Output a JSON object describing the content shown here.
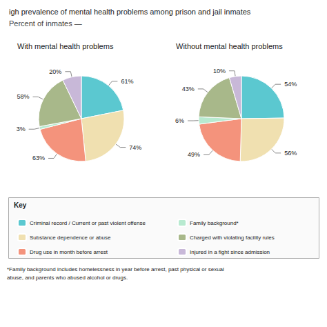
{
  "chart_data": {
    "type": "pie",
    "title": "igh prevalence of mental health problems among prison and jail inmates",
    "subtitle": "Percent of inmates —",
    "categories": [
      "Criminal record / Current or past violent offense",
      "Substance dependence or abuse",
      "Drug use in month before arrest",
      "Family background*",
      "Charged with violating facility rules",
      "Injured in a fight since admission"
    ],
    "colors": [
      "#5BC8D0",
      "#F0E0B0",
      "#F4937C",
      "#B8EAD0",
      "#A8B88A",
      "#C8B8D8"
    ],
    "series": [
      {
        "name": "With mental health problems",
        "values": [
          61,
          74,
          63,
          3,
          58,
          20
        ],
        "value_labels": [
          "61%",
          "74%",
          "63%",
          "3%",
          "58%",
          "20%"
        ]
      },
      {
        "name": "Without mental health problems",
        "values": [
          54,
          56,
          49,
          6,
          43,
          10
        ],
        "value_labels": [
          "54%",
          "56%",
          "49%",
          "6%",
          "43%",
          "10%"
        ]
      }
    ],
    "data_labels": true,
    "legend": "bottom",
    "annotations": [
      "Key",
      "*Family background includes homelessness in year before arrest, past physical or sexual\nabuse, and parents who abused alcohol or drugs."
    ]
  }
}
